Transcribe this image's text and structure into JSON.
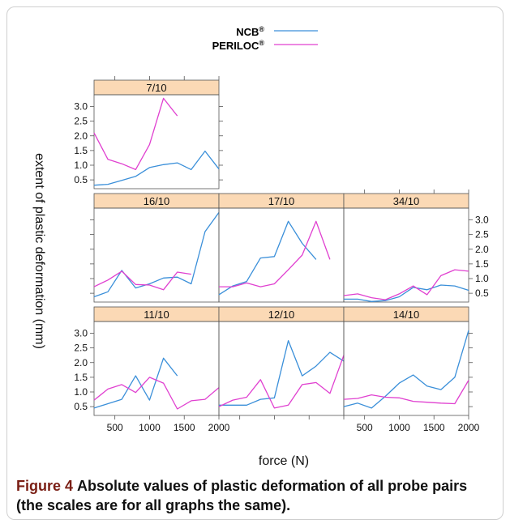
{
  "figure": {
    "caption_label": "Figure 4",
    "caption_text": "Absolute values of plastic deformation of all probe pairs (the scales are for all graphs the same)."
  },
  "chart_data": {
    "type": "line",
    "ylabel": "extent of plastic deformation (mm)",
    "xlabel": "force (N)",
    "x_ticks": [
      500,
      1000,
      1500,
      2000
    ],
    "y_ticks": [
      0.5,
      1.0,
      1.5,
      2.0,
      2.5,
      3.0
    ],
    "x_tick_labels": [
      "500",
      "1000",
      "1500",
      "2000"
    ],
    "y_tick_labels": [
      "0.5",
      "1.0",
      "1.5",
      "2.0",
      "2.5",
      "3.0"
    ],
    "xlim": [
      200,
      2000
    ],
    "ylim": [
      0.2,
      3.4
    ],
    "legend": {
      "placement": "top",
      "entries": [
        {
          "label": "NCB",
          "sup": "®",
          "color": "#3a8fd9"
        },
        {
          "label": "PERILOC",
          "sup": "®",
          "color": "#e040d0"
        }
      ]
    },
    "colors": {
      "NCB": "#3a8fd9",
      "PERILOC": "#e040d0",
      "strip": "#fbd9b5"
    },
    "panels": [
      {
        "title": "7/10",
        "series": [
          {
            "name": "NCB",
            "x": [
              200,
              400,
              600,
              800,
              1000,
              1200,
              1400,
              1600,
              1800,
              2000
            ],
            "y": [
              0.32,
              0.35,
              0.48,
              0.62,
              0.92,
              1.02,
              1.08,
              0.85,
              1.48,
              0.87
            ]
          },
          {
            "name": "PERILOC",
            "x": [
              200,
              400,
              600,
              800,
              1000,
              1200,
              1400
            ],
            "y": [
              2.1,
              1.2,
              1.05,
              0.85,
              1.7,
              3.28,
              2.68
            ]
          }
        ]
      },
      {
        "title": "16/10",
        "series": [
          {
            "name": "NCB",
            "x": [
              200,
              400,
              600,
              800,
              1000,
              1200,
              1400,
              1600,
              1800,
              2000
            ],
            "y": [
              0.38,
              0.55,
              1.28,
              0.68,
              0.82,
              1.02,
              1.05,
              0.82,
              2.6,
              3.25
            ]
          },
          {
            "name": "PERILOC",
            "x": [
              200,
              400,
              600,
              800,
              1000,
              1200,
              1400,
              1600
            ],
            "y": [
              0.72,
              0.95,
              1.25,
              0.8,
              0.78,
              0.62,
              1.22,
              1.15
            ]
          }
        ]
      },
      {
        "title": "17/10",
        "series": [
          {
            "name": "NCB",
            "x": [
              200,
              400,
              600,
              800,
              1000,
              1200,
              1400,
              1600
            ],
            "y": [
              0.45,
              0.75,
              0.9,
              1.7,
              1.75,
              2.95,
              2.2,
              1.65
            ]
          },
          {
            "name": "PERILOC",
            "x": [
              200,
              400,
              600,
              800,
              1000,
              1200,
              1400,
              1600,
              1800
            ],
            "y": [
              0.72,
              0.72,
              0.85,
              0.72,
              0.82,
              1.3,
              1.8,
              2.95,
              1.65
            ]
          }
        ]
      },
      {
        "title": "34/10",
        "series": [
          {
            "name": "NCB",
            "x": [
              200,
              400,
              600,
              800,
              1000,
              1200,
              1400,
              1600,
              1800,
              2000
            ],
            "y": [
              0.3,
              0.3,
              0.22,
              0.25,
              0.38,
              0.7,
              0.62,
              0.78,
              0.75,
              0.6
            ]
          },
          {
            "name": "PERILOC",
            "x": [
              200,
              400,
              600,
              800,
              1000,
              1200,
              1400,
              1600,
              1800,
              2000
            ],
            "y": [
              0.42,
              0.48,
              0.35,
              0.28,
              0.48,
              0.75,
              0.45,
              1.1,
              1.3,
              1.25
            ]
          }
        ]
      },
      {
        "title": "11/10",
        "series": [
          {
            "name": "NCB",
            "x": [
              200,
              400,
              600,
              800,
              1000,
              1200,
              1400
            ],
            "y": [
              0.45,
              0.6,
              0.75,
              1.55,
              0.72,
              2.15,
              1.55
            ]
          },
          {
            "name": "PERILOC",
            "x": [
              200,
              400,
              600,
              800,
              1000,
              1200,
              1400,
              1600,
              1800,
              2000
            ],
            "y": [
              0.72,
              1.1,
              1.25,
              0.98,
              1.5,
              1.3,
              0.42,
              0.7,
              0.75,
              1.15
            ]
          }
        ]
      },
      {
        "title": "12/10",
        "series": [
          {
            "name": "NCB",
            "x": [
              200,
              400,
              600,
              800,
              1000,
              1200,
              1400,
              1600,
              1800,
              2000
            ],
            "y": [
              0.55,
              0.55,
              0.55,
              0.75,
              0.8,
              2.75,
              1.55,
              1.88,
              2.35,
              2.05
            ]
          },
          {
            "name": "PERILOC",
            "x": [
              200,
              400,
              600,
              800,
              1000,
              1200,
              1400,
              1600,
              1800,
              2000
            ],
            "y": [
              0.5,
              0.72,
              0.82,
              1.42,
              0.45,
              0.55,
              1.25,
              1.32,
              0.95,
              2.25
            ]
          }
        ]
      },
      {
        "title": "14/10",
        "series": [
          {
            "name": "NCB",
            "x": [
              200,
              400,
              600,
              800,
              1000,
              1200,
              1400,
              1600,
              1800,
              2000
            ],
            "y": [
              0.5,
              0.62,
              0.45,
              0.85,
              1.3,
              1.58,
              1.2,
              1.08,
              1.5,
              3.1
            ]
          },
          {
            "name": "PERILOC",
            "x": [
              200,
              400,
              600,
              800,
              1000,
              1200,
              1400,
              1600,
              1800,
              2000
            ],
            "y": [
              0.75,
              0.78,
              0.9,
              0.82,
              0.8,
              0.68,
              0.65,
              0.62,
              0.6,
              1.4
            ]
          }
        ]
      }
    ]
  }
}
